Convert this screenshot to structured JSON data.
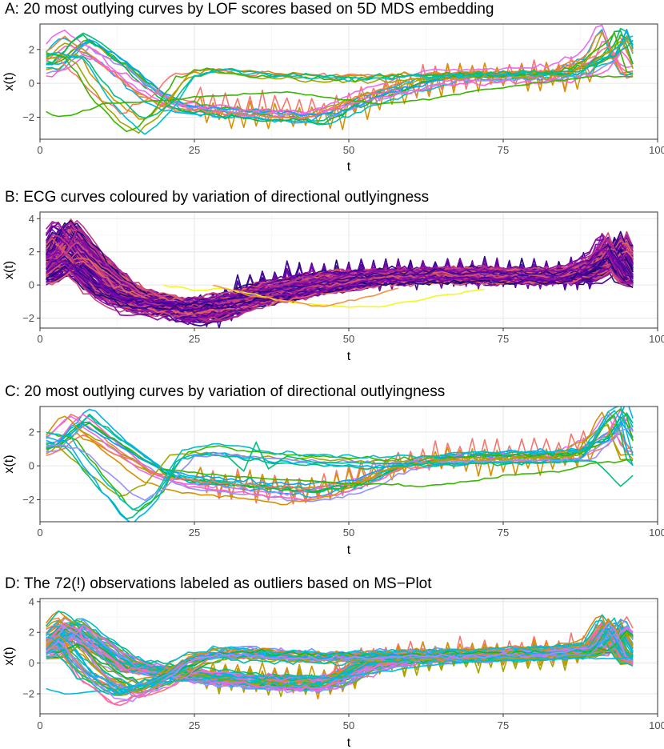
{
  "chart_data": [
    {
      "type": "line",
      "title": "A: 20 most outlying curves by LOF scores based on 5D MDS embedding",
      "xlabel": "t",
      "ylabel": "x(t)",
      "xlim": [
        0,
        100
      ],
      "ylim": [
        -3.3,
        3.5
      ],
      "xticks": [
        0,
        25,
        50,
        75,
        100
      ],
      "yticks": [
        -2,
        0,
        2
      ],
      "grid": true,
      "n_curves": 20,
      "palette": [
        "#F8766D",
        "#D89000",
        "#A3A500",
        "#39B600",
        "#00BF7D",
        "#00BFC4",
        "#00B0F6",
        "#9590FF",
        "#E76BF3",
        "#FF62BC",
        "#EA8331",
        "#00BB4E",
        "#00A5FF",
        "#FD61D1"
      ],
      "profiles": [
        {
          "share": 0.7,
          "pts": [
            [
              1,
              1.0
            ],
            [
              6,
              2.5
            ],
            [
              12,
              1.2
            ],
            [
              18,
              -0.5
            ],
            [
              22,
              -1.2
            ],
            [
              30,
              -1.5
            ],
            [
              45,
              -1.8
            ],
            [
              55,
              -0.5
            ],
            [
              65,
              0.4
            ],
            [
              85,
              0.6
            ],
            [
              91,
              1.5
            ],
            [
              93,
              3.0
            ],
            [
              96,
              0.6
            ]
          ]
        },
        {
          "share": 0.3,
          "pts": [
            [
              1,
              1.5
            ],
            [
              5,
              1.4
            ],
            [
              10,
              -1.0
            ],
            [
              15,
              -2.5
            ],
            [
              19,
              -1.5
            ],
            [
              23,
              0.3
            ],
            [
              28,
              0.7
            ],
            [
              35,
              0.4
            ],
            [
              50,
              0.2
            ],
            [
              65,
              0.4
            ],
            [
              85,
              0.5
            ],
            [
              92,
              1.8
            ],
            [
              94,
              2.5
            ],
            [
              96,
              0.5
            ]
          ]
        }
      ],
      "special_curves": [
        {
          "color": "#39B600",
          "pts": [
            [
              1,
              -1.7
            ],
            [
              3,
              -2.0
            ],
            [
              6,
              -1.8
            ],
            [
              10,
              -1.2
            ],
            [
              20,
              -1.0
            ],
            [
              30,
              -0.7
            ],
            [
              40,
              -0.5
            ],
            [
              48,
              -0.9
            ],
            [
              55,
              -1.2
            ],
            [
              62,
              -1.0
            ],
            [
              70,
              -0.5
            ],
            [
              80,
              0.0
            ],
            [
              90,
              0.4
            ],
            [
              96,
              0.4
            ]
          ]
        }
      ],
      "noise": 0.25,
      "spike_curves": 2
    },
    {
      "type": "line",
      "title": "B: ECG curves coloured by variation of directional outlyingness",
      "xlabel": "t",
      "ylabel": "x(t)",
      "xlim": [
        0,
        100
      ],
      "ylim": [
        -2.6,
        4.4
      ],
      "xticks": [
        0,
        25,
        50,
        75,
        100
      ],
      "yticks": [
        -2,
        0,
        2,
        4
      ],
      "grid": true,
      "n_curves": 150,
      "palette": [
        "#1B0C6B",
        "#2D0A8A",
        "#3F0898",
        "#53079F",
        "#6A00A8",
        "#7A0BA5",
        "#8F0DA4",
        "#A2209B",
        "#B12A90",
        "#C03A83",
        "#CC4778",
        "#D6556D",
        "#E16462"
      ],
      "profiles": [
        {
          "share": 0.6,
          "pts": [
            [
              1,
              1.5
            ],
            [
              4,
              3.2
            ],
            [
              8,
              1.5
            ],
            [
              14,
              -0.4
            ],
            [
              20,
              -1.2
            ],
            [
              26,
              -1.8
            ],
            [
              30,
              -1.5
            ],
            [
              36,
              -0.3
            ],
            [
              45,
              0.4
            ],
            [
              60,
              0.6
            ],
            [
              75,
              0.6
            ],
            [
              88,
              0.5
            ],
            [
              92,
              1.5
            ],
            [
              93,
              2.6
            ],
            [
              96,
              0.4
            ]
          ]
        },
        {
          "share": 0.4,
          "pts": [
            [
              1,
              0.5
            ],
            [
              5,
              1.5
            ],
            [
              10,
              -0.3
            ],
            [
              15,
              -1.2
            ],
            [
              25,
              -1.5
            ],
            [
              35,
              -0.9
            ],
            [
              45,
              -0.2
            ],
            [
              55,
              0.4
            ],
            [
              65,
              0.6
            ],
            [
              85,
              0.5
            ],
            [
              91,
              1.3
            ],
            [
              93,
              2.3
            ],
            [
              96,
              0.3
            ]
          ]
        }
      ],
      "special_curves": [
        {
          "color": "#F0F921",
          "pts": [
            [
              20,
              0
            ],
            [
              25,
              -0.3
            ],
            [
              30,
              -0.2
            ],
            [
              35,
              -0.6
            ],
            [
              40,
              -1.0
            ],
            [
              45,
              -1.2
            ],
            [
              50,
              -1.3
            ],
            [
              55,
              -1.3
            ],
            [
              60,
              -1.0
            ],
            [
              65,
              -0.6
            ],
            [
              72,
              -0.3
            ]
          ]
        },
        {
          "color": "#F89441",
          "pts": [
            [
              28,
              0.0
            ],
            [
              34,
              -0.6
            ],
            [
              40,
              -1.0
            ],
            [
              46,
              -1.3
            ],
            [
              52,
              -0.8
            ],
            [
              58,
              -0.2
            ]
          ]
        }
      ],
      "noise": 0.3,
      "spike_curves": 6
    },
    {
      "type": "line",
      "title": "C: 20 most outlying curves by variation of directional outlyingness",
      "xlabel": "t",
      "ylabel": "x(t)",
      "xlim": [
        0,
        100
      ],
      "ylim": [
        -3.3,
        3.5
      ],
      "xticks": [
        0,
        25,
        50,
        75,
        100
      ],
      "yticks": [
        -2,
        0,
        2
      ],
      "grid": true,
      "n_curves": 20,
      "palette": [
        "#F8766D",
        "#D89000",
        "#A3A500",
        "#39B600",
        "#00BF7D",
        "#00BFC4",
        "#00B0F6",
        "#9590FF",
        "#E76BF3",
        "#FF62BC",
        "#00BB4E",
        "#00A5FF"
      ],
      "profiles": [
        {
          "share": 0.7,
          "pts": [
            [
              1,
              1.0
            ],
            [
              6,
              2.6
            ],
            [
              12,
              1.1
            ],
            [
              18,
              -0.4
            ],
            [
              22,
              -0.9
            ],
            [
              30,
              -1.2
            ],
            [
              42,
              -1.6
            ],
            [
              50,
              -1.2
            ],
            [
              58,
              0.0
            ],
            [
              65,
              0.4
            ],
            [
              85,
              0.6
            ],
            [
              91,
              1.6
            ],
            [
              93,
              2.9
            ],
            [
              96,
              0.7
            ]
          ]
        },
        {
          "share": 0.3,
          "pts": [
            [
              1,
              1.6
            ],
            [
              5,
              1.3
            ],
            [
              10,
              -0.8
            ],
            [
              15,
              -2.6
            ],
            [
              19,
              -1.6
            ],
            [
              23,
              0.6
            ],
            [
              28,
              0.9
            ],
            [
              40,
              0.4
            ],
            [
              55,
              0.2
            ],
            [
              70,
              0.4
            ],
            [
              88,
              0.5
            ],
            [
              92,
              2.5
            ],
            [
              94,
              3.0
            ],
            [
              96,
              0.3
            ]
          ]
        }
      ],
      "special_curves": [
        {
          "color": "#39B600",
          "pts": [
            [
              20,
              -0.2
            ],
            [
              30,
              -0.6
            ],
            [
              40,
              -0.8
            ],
            [
              48,
              -1.0
            ],
            [
              55,
              -1.1
            ],
            [
              62,
              -1.2
            ],
            [
              68,
              -1.0
            ],
            [
              75,
              -0.6
            ],
            [
              85,
              -0.3
            ],
            [
              90,
              0.2
            ],
            [
              96,
              0.3
            ]
          ]
        },
        {
          "color": "#00BF7D",
          "pts": [
            [
              30,
              0.7
            ],
            [
              33,
              -0.3
            ],
            [
              35,
              1.4
            ],
            [
              37,
              -0.2
            ],
            [
              40,
              0.6
            ],
            [
              45,
              0.2
            ],
            [
              60,
              0.1
            ],
            [
              80,
              0.2
            ],
            [
              90,
              0.3
            ],
            [
              94,
              -1.2
            ],
            [
              96,
              -0.6
            ]
          ]
        }
      ],
      "noise": 0.2,
      "spike_curves": 2
    },
    {
      "type": "line",
      "title": "D: The 72(!) observations labeled as outliers based on MS−Plot",
      "xlabel": "t",
      "ylabel": "x(t)",
      "xlim": [
        0,
        100
      ],
      "ylim": [
        -3.3,
        4.2
      ],
      "xticks": [
        0,
        25,
        50,
        75,
        100
      ],
      "yticks": [
        -2,
        0,
        2,
        4
      ],
      "grid": true,
      "n_curves": 72,
      "palette": [
        "#F8766D",
        "#E58700",
        "#C99800",
        "#A3A500",
        "#6BB100",
        "#00BA38",
        "#00BF7D",
        "#00C0AF",
        "#00BCD8",
        "#00B0F6",
        "#619CFF",
        "#B983FF",
        "#E76BF3",
        "#FD61D1",
        "#FF67A4"
      ],
      "profiles": [
        {
          "share": 0.6,
          "pts": [
            [
              1,
              1.2
            ],
            [
              5,
              2.6
            ],
            [
              10,
              1.2
            ],
            [
              15,
              -0.2
            ],
            [
              20,
              -0.5
            ],
            [
              30,
              -1.0
            ],
            [
              40,
              -1.3
            ],
            [
              47,
              -1.3
            ],
            [
              53,
              -0.2
            ],
            [
              60,
              0.4
            ],
            [
              80,
              0.6
            ],
            [
              90,
              0.9
            ],
            [
              93,
              2.5
            ],
            [
              96,
              0.3
            ]
          ]
        },
        {
          "share": 0.4,
          "pts": [
            [
              1,
              0.5
            ],
            [
              4,
              1.3
            ],
            [
              8,
              -0.6
            ],
            [
              14,
              -2.0
            ],
            [
              20,
              -1.2
            ],
            [
              25,
              0.2
            ],
            [
              30,
              0.6
            ],
            [
              45,
              0.3
            ],
            [
              60,
              0.4
            ],
            [
              80,
              0.5
            ],
            [
              90,
              0.8
            ],
            [
              93,
              2.4
            ],
            [
              96,
              0.2
            ]
          ]
        }
      ],
      "special_curves": [
        {
          "color": "#00BCD8",
          "pts": [
            [
              1,
              -1.7
            ],
            [
              4,
              -2.0
            ],
            [
              8,
              -1.9
            ],
            [
              14,
              -1.6
            ],
            [
              20,
              -1.2
            ],
            [
              30,
              -0.9
            ],
            [
              40,
              -0.9
            ],
            [
              48,
              -1.0
            ],
            [
              55,
              -0.6
            ],
            [
              62,
              -0.2
            ],
            [
              70,
              0.1
            ],
            [
              85,
              0.3
            ],
            [
              96,
              0.3
            ]
          ]
        }
      ],
      "noise": 0.3,
      "spike_curves": 4
    }
  ]
}
